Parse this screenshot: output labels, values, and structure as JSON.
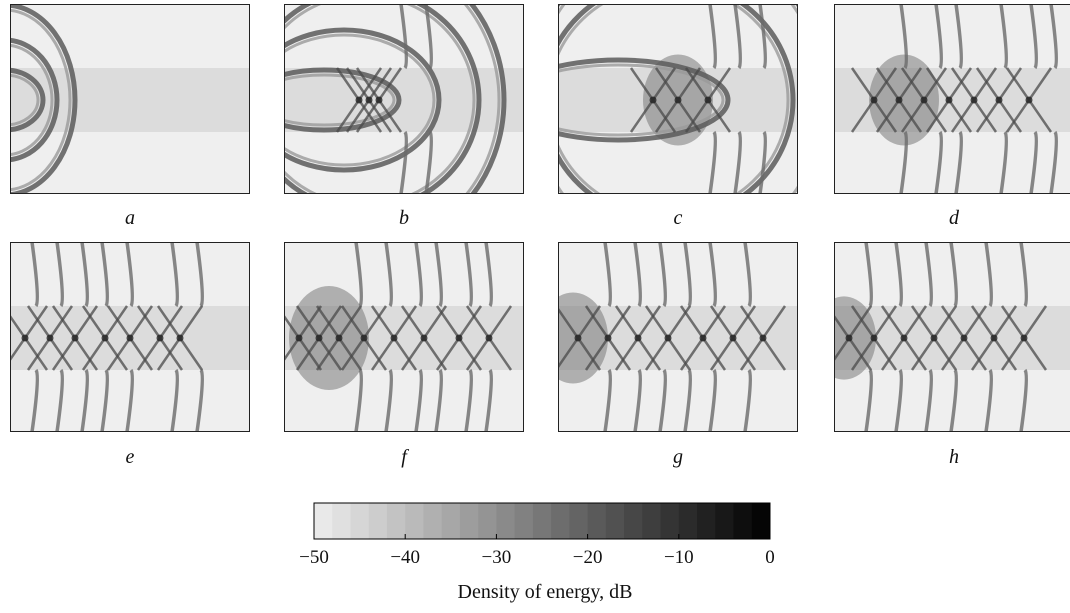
{
  "chart_data": {
    "type": "heatmap",
    "panels": [
      {
        "label": "a"
      },
      {
        "label": "b"
      },
      {
        "label": "c"
      },
      {
        "label": "d"
      },
      {
        "label": "e"
      },
      {
        "label": "f"
      },
      {
        "label": "g"
      },
      {
        "label": "h"
      }
    ],
    "colorbar": {
      "label": "Density of energy, dB",
      "range": [
        -50,
        0
      ],
      "ticks": [
        -50,
        -40,
        -30,
        -20,
        -10,
        0
      ],
      "tick_labels": [
        "−50",
        "−40",
        "−30",
        "−20",
        "−10",
        "0"
      ],
      "colormap": "grayscale, light gray (#eeeeee) at -50 dB to black (#000000) at 0 dB",
      "steps": 25
    }
  }
}
